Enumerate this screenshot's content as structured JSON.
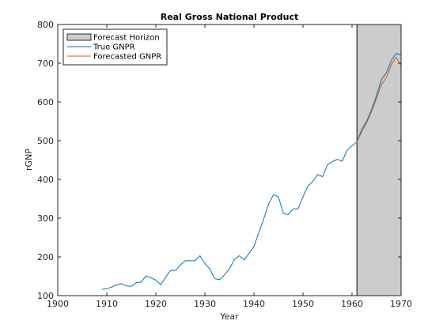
{
  "chart_data": {
    "type": "line",
    "title": "Real Gross National Product",
    "xlabel": "Year",
    "ylabel": "rGNP",
    "xlim": [
      1900,
      1970
    ],
    "ylim": [
      100,
      800
    ],
    "xticks": [
      1900,
      1910,
      1920,
      1930,
      1940,
      1950,
      1960,
      1970
    ],
    "yticks": [
      100,
      200,
      300,
      400,
      500,
      600,
      700,
      800
    ],
    "grid": false,
    "legend_position": "top-left",
    "forecast_horizon": {
      "name": "Forecast Horizon",
      "start": 1961,
      "end": 1970,
      "color": "#cccccc"
    },
    "series": [
      {
        "name": "True GNPR",
        "color": "#0072bd",
        "x": [
          1909,
          1910,
          1911,
          1912,
          1913,
          1914,
          1915,
          1916,
          1917,
          1918,
          1919,
          1920,
          1921,
          1922,
          1923,
          1924,
          1925,
          1926,
          1927,
          1928,
          1929,
          1930,
          1931,
          1932,
          1933,
          1934,
          1935,
          1936,
          1937,
          1938,
          1939,
          1940,
          1941,
          1942,
          1943,
          1944,
          1945,
          1946,
          1947,
          1948,
          1949,
          1950,
          1951,
          1952,
          1953,
          1954,
          1955,
          1956,
          1957,
          1958,
          1959,
          1960,
          1961,
          1962,
          1963,
          1964,
          1965,
          1966,
          1967,
          1968,
          1969,
          1970
        ],
        "values": [
          116,
          118,
          122,
          128,
          131,
          125,
          124,
          133,
          135,
          151,
          146,
          140,
          128,
          148,
          165,
          165,
          179,
          190,
          190,
          190,
          203,
          183,
          169,
          144,
          141,
          154,
          169,
          193,
          203,
          192,
          209,
          227,
          263,
          298,
          337,
          361,
          355,
          312,
          309,
          324,
          324,
          355,
          383,
          395,
          413,
          407,
          438,
          446,
          452,
          447,
          476,
          487,
          497,
          530,
          551,
          581,
          617,
          658,
          675,
          707,
          725,
          722
        ]
      },
      {
        "name": "Forecasted GNPR",
        "color": "#d95319",
        "x": [
          1961,
          1962,
          1963,
          1964,
          1965,
          1966,
          1967,
          1968,
          1969,
          1970
        ],
        "values": [
          497,
          524,
          547,
          576,
          609,
          645,
          663,
          696,
          715,
          695
        ]
      }
    ]
  }
}
